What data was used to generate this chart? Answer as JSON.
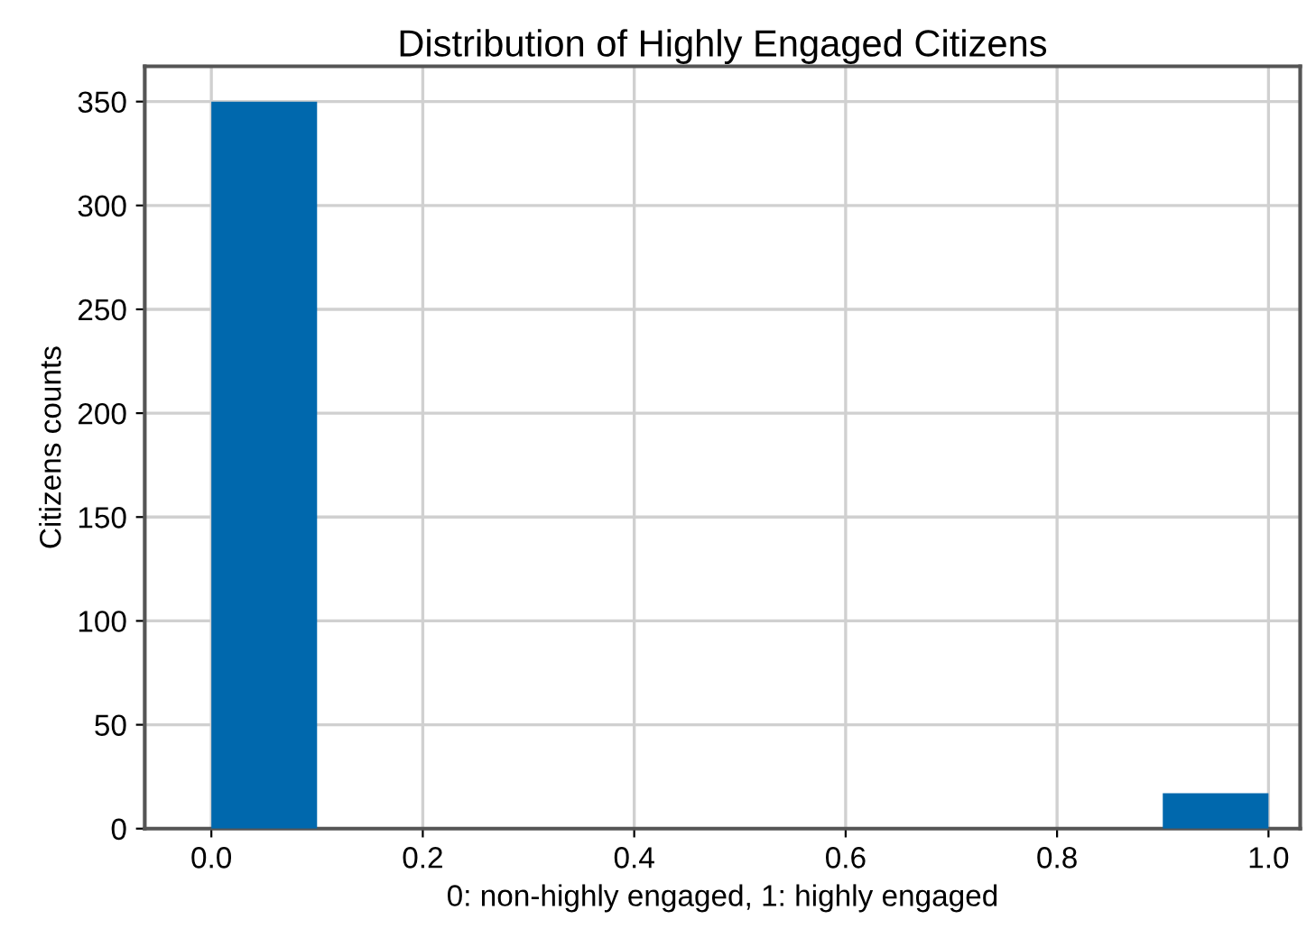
{
  "chart_data": {
    "type": "histogram",
    "title": "Distribution of Highly Engaged Citizens",
    "xlabel": "0: non-highly engaged, 1: highly engaged",
    "ylabel": "Citizens counts",
    "bins": [
      0.0,
      0.1,
      0.2,
      0.3,
      0.4,
      0.5,
      0.6,
      0.7,
      0.8,
      0.9,
      1.0
    ],
    "values": [
      350,
      0,
      0,
      0,
      0,
      0,
      0,
      0,
      0,
      17
    ],
    "color": "#0068ad",
    "xlim": [
      -0.063,
      1.03
    ],
    "ylim": [
      0,
      367
    ],
    "xticks": [
      {
        "value": 0,
        "label": "0.0"
      },
      0.2,
      0.4,
      0.6,
      0.8,
      {
        "value": 1,
        "label": "1.0"
      }
    ],
    "yticks": [
      0,
      50,
      100,
      150,
      200,
      250,
      300,
      350
    ],
    "grid": true,
    "legend": false
  }
}
